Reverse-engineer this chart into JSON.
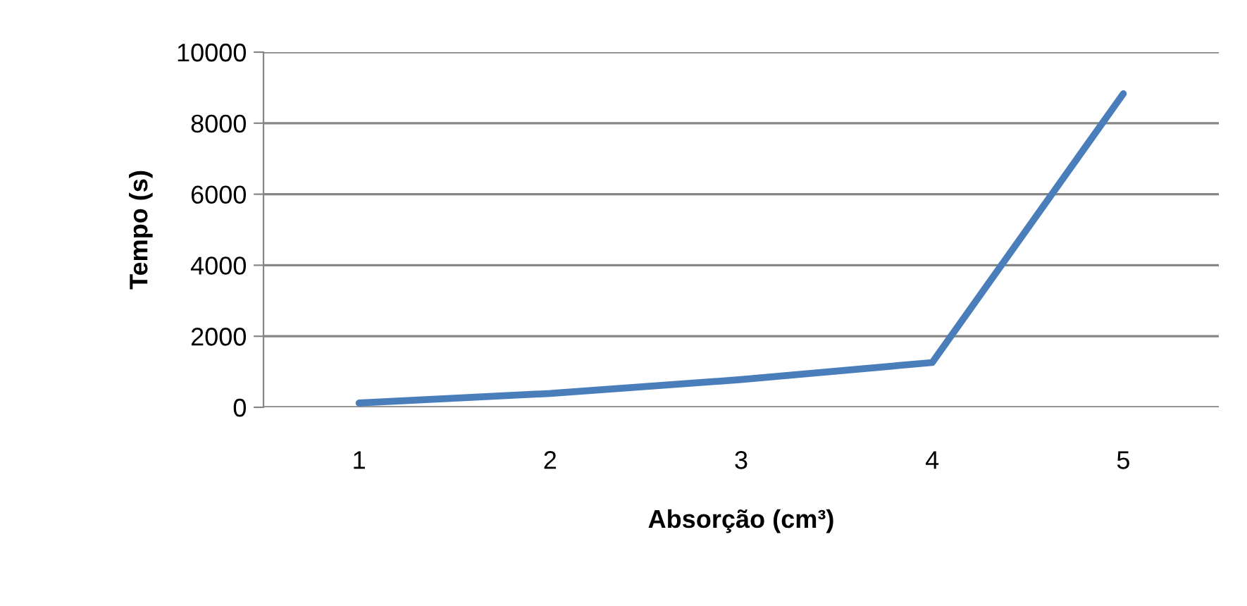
{
  "chart_data": {
    "type": "line",
    "xlabel": "Absorção (cm³)",
    "ylabel": "Tempo (s)",
    "categories": [
      "1",
      "2",
      "3",
      "4",
      "5"
    ],
    "series": [
      {
        "color": "#4a7ebb",
        "values": [
          120,
          390,
          780,
          1260,
          8830
        ]
      }
    ],
    "ylim": [
      0,
      10000
    ],
    "yticks": [
      0,
      2000,
      4000,
      6000,
      8000,
      10000
    ],
    "grid": "y",
    "marker": "none",
    "line_style": "solid"
  }
}
